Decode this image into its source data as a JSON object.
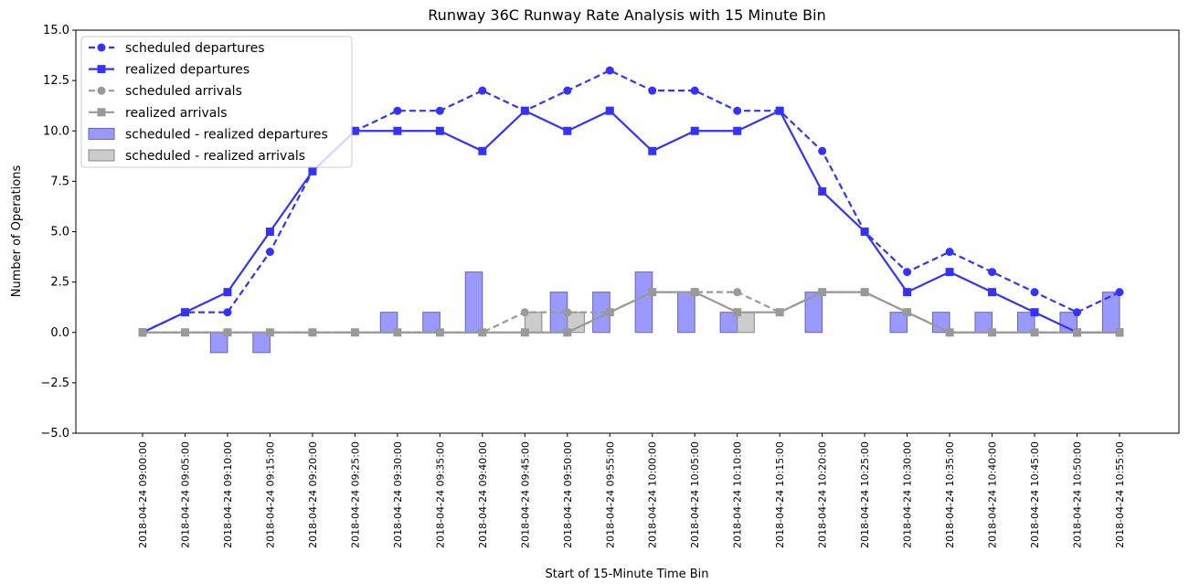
{
  "chart_data": {
    "type": "line",
    "title": "Runway 36C Runway Rate Analysis with 15 Minute Bin",
    "x_label": "Start of 15-Minute Time Bin",
    "y_label": "Number of Operations",
    "categories": [
      "2018-04-24 09:00:00",
      "2018-04-24 09:05:00",
      "2018-04-24 09:10:00",
      "2018-04-24 09:15:00",
      "2018-04-24 09:20:00",
      "2018-04-24 09:25:00",
      "2018-04-24 09:30:00",
      "2018-04-24 09:35:00",
      "2018-04-24 09:40:00",
      "2018-04-24 09:45:00",
      "2018-04-24 09:50:00",
      "2018-04-24 09:55:00",
      "2018-04-24 10:00:00",
      "2018-04-24 10:05:00",
      "2018-04-24 10:10:00",
      "2018-04-24 10:15:00",
      "2018-04-24 10:20:00",
      "2018-04-24 10:25:00",
      "2018-04-24 10:30:00",
      "2018-04-24 10:35:00",
      "2018-04-24 10:40:00",
      "2018-04-24 10:45:00",
      "2018-04-24 10:50:00",
      "2018-04-24 10:55:00"
    ],
    "series": [
      {
        "name": "scheduled departures",
        "type": "line",
        "dashed": true,
        "marker": "circle",
        "color": "#3333ff",
        "values": [
          0,
          1,
          1,
          4,
          8,
          10,
          11,
          11,
          12,
          11,
          12,
          13,
          12,
          12,
          11,
          11,
          9,
          5,
          3,
          4,
          3,
          2,
          1,
          2
        ]
      },
      {
        "name": "realized departures",
        "type": "line",
        "dashed": false,
        "marker": "square",
        "color": "#3333ff",
        "values": [
          0,
          1,
          2,
          5,
          8,
          10,
          10,
          10,
          9,
          11,
          10,
          11,
          9,
          10,
          10,
          11,
          7,
          5,
          2,
          3,
          2,
          1,
          0,
          0
        ]
      },
      {
        "name": "scheduled arrivals",
        "type": "line",
        "dashed": true,
        "marker": "circle",
        "color": "#999999",
        "values": [
          0,
          0,
          0,
          0,
          0,
          0,
          0,
          0,
          0,
          1,
          1,
          1,
          2,
          2,
          2,
          1,
          2,
          2,
          1,
          0,
          0,
          0,
          0,
          0
        ]
      },
      {
        "name": "realized arrivals",
        "type": "line",
        "dashed": false,
        "marker": "square",
        "color": "#999999",
        "values": [
          0,
          0,
          0,
          0,
          0,
          0,
          0,
          0,
          0,
          0,
          0,
          1,
          2,
          2,
          1,
          1,
          2,
          2,
          1,
          0,
          0,
          0,
          0,
          0
        ]
      },
      {
        "name": "scheduled - realized departures",
        "type": "bar",
        "offset": "left",
        "color": "#9999ff",
        "edge": "#6666aa",
        "values": [
          0,
          0,
          -1,
          -1,
          0,
          0,
          1,
          1,
          3,
          0,
          2,
          2,
          3,
          2,
          1,
          0,
          2,
          0,
          1,
          1,
          1,
          1,
          1,
          2
        ]
      },
      {
        "name": "scheduled - realized arrivals",
        "type": "bar",
        "offset": "right",
        "color": "#cccccc",
        "edge": "#888888",
        "values": [
          0,
          0,
          0,
          0,
          0,
          0,
          0,
          0,
          0,
          1,
          1,
          0,
          0,
          0,
          1,
          0,
          0,
          0,
          0,
          0,
          0,
          0,
          0,
          0
        ]
      }
    ],
    "ylim": [
      -5,
      15
    ],
    "yticks": [
      {
        "value": -5,
        "label": "−5.0"
      },
      {
        "value": -2.5,
        "label": "−2.5"
      },
      {
        "value": 0,
        "label": "0.0"
      },
      {
        "value": 2.5,
        "label": "2.5"
      },
      {
        "value": 5,
        "label": "5.0"
      },
      {
        "value": 7.5,
        "label": "7.5"
      },
      {
        "value": 10,
        "label": "10.0"
      },
      {
        "value": 12.5,
        "label": "12.5"
      },
      {
        "value": 15,
        "label": "15.0"
      }
    ],
    "legend": "upper left",
    "grid": false
  }
}
